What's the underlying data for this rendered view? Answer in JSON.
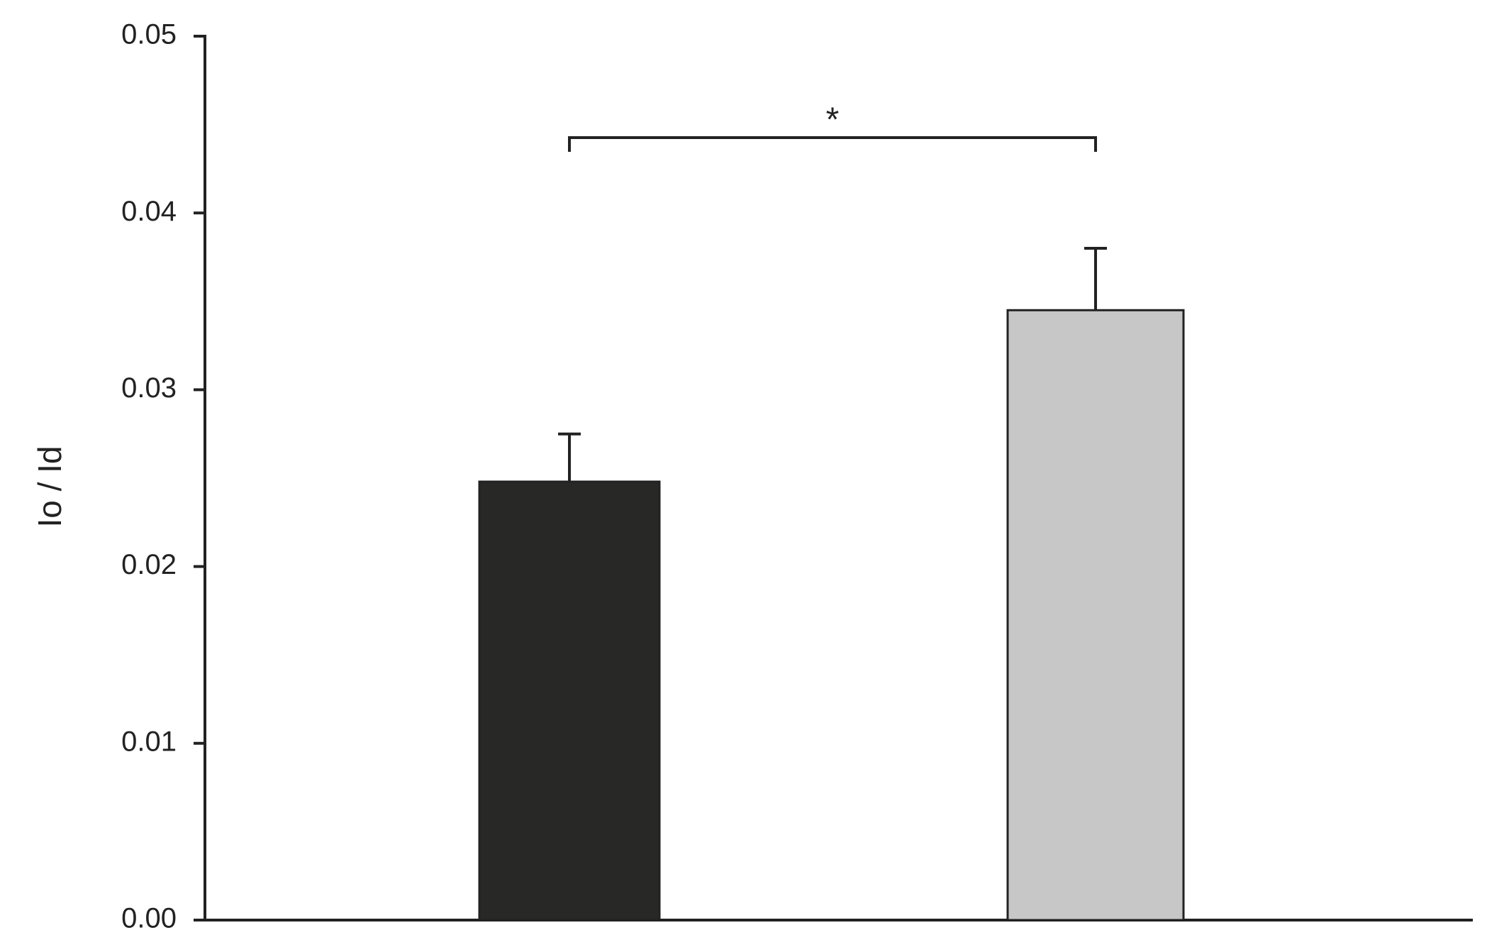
{
  "chart_data": {
    "type": "bar",
    "y_label": "Io / Id",
    "categories": [
      null,
      null
    ],
    "values": [
      0.0248,
      0.0345
    ],
    "errors": [
      0.0027,
      0.0035
    ],
    "colors": [
      "#282826",
      "#c6c7c6"
    ],
    "annotation": "*",
    "ylim": [
      0,
      0.05
    ],
    "yticks": [
      {
        "value": 0,
        "label": "0.00"
      },
      0.01,
      0.02,
      0.03,
      0.04,
      0.05
    ],
    "grid": false
  }
}
